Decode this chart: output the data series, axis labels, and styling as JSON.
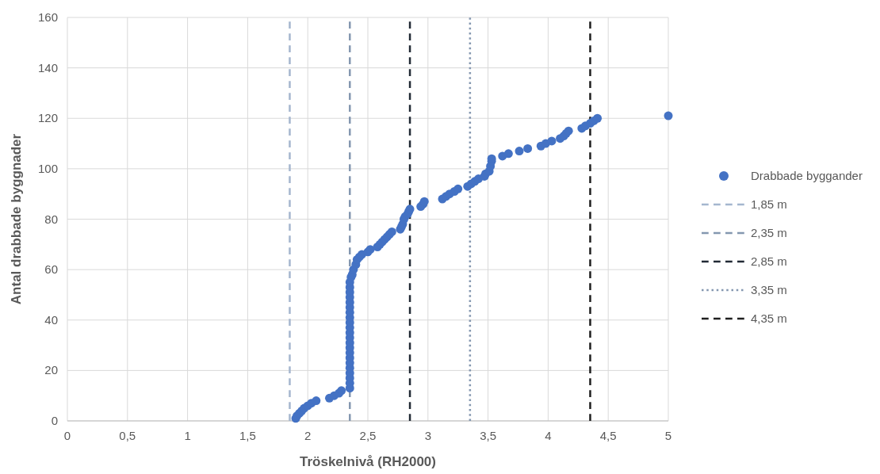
{
  "chart_data": {
    "type": "scatter",
    "xlabel": "Tröskelnivå (RH2000)",
    "ylabel": "Antal drabbade byggnader",
    "xlim": [
      0,
      5
    ],
    "ylim": [
      0,
      160
    ],
    "xticks": [
      0,
      {
        "value": 0.5,
        "label": "0,5"
      },
      1,
      {
        "value": 1.5,
        "label": "1,5"
      },
      2,
      {
        "value": 2.5,
        "label": "2,5"
      },
      3,
      {
        "value": 3.5,
        "label": "3,5"
      },
      4,
      {
        "value": 4.5,
        "label": "4,5"
      },
      5
    ],
    "yticks": [
      0,
      20,
      40,
      60,
      80,
      100,
      120,
      140,
      160
    ],
    "grid": true,
    "legend": "right",
    "series": [
      {
        "name": "Drabbade byggander",
        "color": "#4472c4",
        "marker": "circle",
        "x": [
          1.9,
          1.91,
          1.93,
          1.95,
          1.97,
          2.0,
          2.03,
          2.07,
          2.18,
          2.22,
          2.26,
          2.28,
          2.35,
          2.35,
          2.35,
          2.35,
          2.35,
          2.35,
          2.35,
          2.35,
          2.35,
          2.35,
          2.35,
          2.35,
          2.35,
          2.35,
          2.35,
          2.35,
          2.35,
          2.35,
          2.35,
          2.35,
          2.35,
          2.35,
          2.36,
          2.37,
          2.38,
          2.4,
          2.41,
          2.43,
          2.45,
          2.5,
          2.52,
          2.58,
          2.6,
          2.62,
          2.64,
          2.66,
          2.68,
          2.7,
          2.77,
          2.78,
          2.79,
          2.8,
          2.81,
          2.83,
          2.84,
          2.85,
          2.94,
          2.96,
          2.97,
          3.12,
          3.15,
          3.18,
          3.22,
          3.25,
          3.33,
          3.36,
          3.39,
          3.42,
          3.47,
          3.48,
          3.51,
          3.52,
          3.53,
          3.53,
          3.62,
          3.67,
          3.76,
          3.83,
          3.94,
          3.98,
          4.03,
          4.1,
          4.13,
          4.15,
          4.17,
          4.28,
          4.31,
          4.35,
          4.38,
          4.41,
          5.0
        ],
        "values": [
          1,
          2,
          3,
          4,
          5,
          6,
          7,
          8,
          9,
          10,
          11,
          12,
          13,
          15,
          17,
          19,
          21,
          23,
          25,
          27,
          29,
          31,
          33,
          35,
          37,
          39,
          41,
          43,
          45,
          47,
          49,
          51,
          53,
          55,
          57,
          58,
          60,
          62,
          64,
          65,
          66,
          67,
          68,
          69,
          70,
          71,
          72,
          73,
          74,
          75,
          76,
          77,
          78,
          80,
          81,
          82,
          83,
          84,
          85,
          86,
          87,
          88,
          89,
          90,
          91,
          92,
          93,
          94,
          95,
          96,
          97,
          98,
          99,
          101,
          103,
          104,
          105,
          106,
          107,
          108,
          109,
          110,
          111,
          112,
          113,
          114,
          115,
          116,
          117,
          118,
          119,
          120,
          121
        ]
      },
      {
        "type": "line",
        "name": "1,85 m",
        "color": "#a5b6cf",
        "line_style": "dashed",
        "x": [
          1.85,
          1.85
        ],
        "values": [
          0,
          160
        ]
      },
      {
        "type": "line",
        "name": "2,35 m",
        "color": "#8497b0",
        "line_style": "dashed",
        "x": [
          2.35,
          2.35
        ],
        "values": [
          0,
          160
        ]
      },
      {
        "type": "line",
        "name": "2,85 m",
        "color": "#222a35",
        "line_style": "dashed",
        "x": [
          2.85,
          2.85
        ],
        "values": [
          0,
          160
        ]
      },
      {
        "type": "line",
        "name": "3,35 m",
        "color": "#8497b0",
        "line_style": "dotted",
        "x": [
          3.35,
          3.35
        ],
        "values": [
          0,
          160
        ]
      },
      {
        "type": "line",
        "name": "4,35 m",
        "color": "#1f1f1f",
        "line_style": "dashed",
        "x": [
          4.35,
          4.35
        ],
        "values": [
          0,
          160
        ]
      }
    ]
  }
}
